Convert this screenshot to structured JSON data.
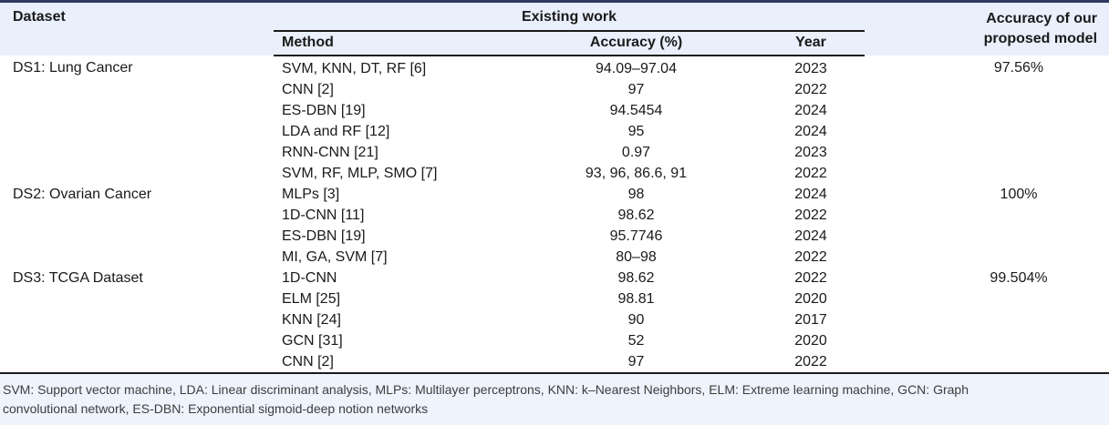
{
  "header": {
    "dataset": "Dataset",
    "existing_work": "Existing work",
    "method": "Method",
    "accuracy_pct": "Accuracy (%)",
    "year": "Year",
    "proposed": "Accuracy of our proposed model"
  },
  "groups": [
    {
      "dataset": "DS1: Lung Cancer",
      "proposed_accuracy": "97.56%",
      "rows": [
        {
          "method": "SVM, KNN, DT, RF [6]",
          "accuracy": "94.09–97.04",
          "year": "2023"
        },
        {
          "method": "CNN [2]",
          "accuracy": "97",
          "year": "2022"
        },
        {
          "method": "ES-DBN [19]",
          "accuracy": "94.5454",
          "year": "2024"
        },
        {
          "method": "LDA and RF [12]",
          "accuracy": "95",
          "year": "2024"
        },
        {
          "method": "RNN-CNN [21]",
          "accuracy": "0.97",
          "year": "2023"
        },
        {
          "method": "SVM, RF, MLP, SMO [7]",
          "accuracy": "93, 96, 86.6, 91",
          "year": "2022"
        }
      ]
    },
    {
      "dataset": "DS2: Ovarian Cancer",
      "proposed_accuracy": "100%",
      "rows": [
        {
          "method": "MLPs [3]",
          "accuracy": "98",
          "year": "2024"
        },
        {
          "method": "1D-CNN [11]",
          "accuracy": "98.62",
          "year": "2022"
        },
        {
          "method": "ES-DBN [19]",
          "accuracy": "95.7746",
          "year": "2024"
        },
        {
          "method": "MI, GA, SVM [7]",
          "accuracy": "80–98",
          "year": "2022"
        }
      ]
    },
    {
      "dataset": "DS3: TCGA Dataset",
      "proposed_accuracy": "99.504%",
      "rows": [
        {
          "method": "1D-CNN",
          "accuracy": "98.62",
          "year": "2022"
        },
        {
          "method": "ELM [25]",
          "accuracy": "98.81",
          "year": "2020"
        },
        {
          "method": "KNN [24]",
          "accuracy": "90",
          "year": "2017"
        },
        {
          "method": "GCN [31]",
          "accuracy": "52",
          "year": "2020"
        },
        {
          "method": "CNN [2]",
          "accuracy": "97",
          "year": "2022"
        }
      ]
    }
  ],
  "footnote": {
    "line1": "SVM: Support vector machine, LDA: Linear discriminant analysis, MLPs: Multilayer perceptrons, KNN: k–Nearest Neighbors, ELM: Extreme learning machine, GCN: Graph",
    "line2": "convolutional network, ES-DBN: Exponential sigmoid-deep notion networks"
  },
  "colors": {
    "header_bg": "#e9effb",
    "footnote_bg": "#eef3fc",
    "top_border": "#2c3a64",
    "rule": "#1a1a1a",
    "body_text": "#1a1a1a",
    "footnote_text": "#3d3d3d"
  }
}
